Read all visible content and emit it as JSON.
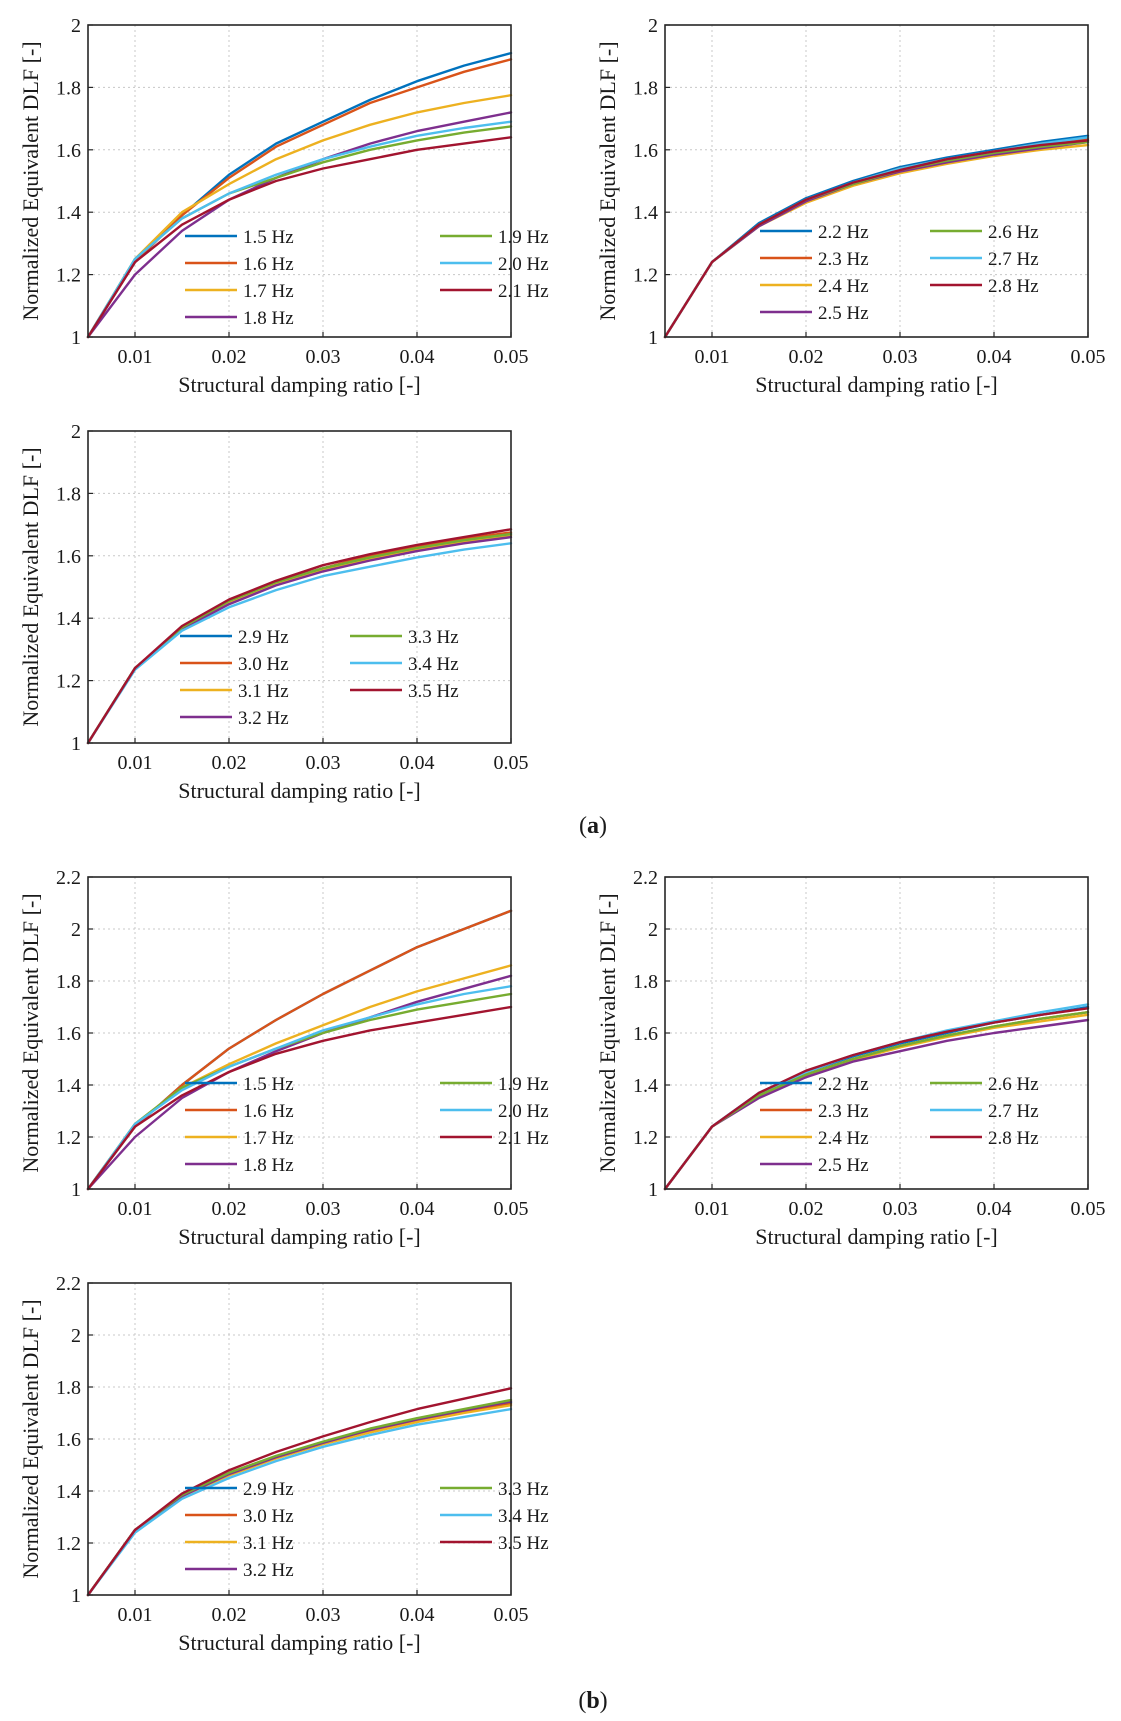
{
  "panel_labels": [
    "a",
    "b"
  ],
  "colors": {
    "blue": "#0072BD",
    "orange": "#D95319",
    "yellow": "#EDB120",
    "purple": "#7E2F8E",
    "green": "#77AC30",
    "cyan": "#4DBEEE",
    "maroon": "#A2142F"
  },
  "chart_data": [
    {
      "type": "line",
      "group": "a",
      "xlabel": "Structural damping ratio [-]",
      "ylabel": "Normalized Equivalent DLF [-]",
      "xlim": [
        0.005,
        0.05
      ],
      "ylim": [
        1,
        2
      ],
      "xticks": [
        0.01,
        0.02,
        0.03,
        0.04,
        0.05
      ],
      "xtick_labels": [
        "0.01",
        "0.02",
        "0.03",
        "0.04",
        "0.05"
      ],
      "yticks": [
        1,
        1.2,
        1.4,
        1.6,
        1.8,
        2
      ],
      "ytick_labels": [
        "1",
        "1.2",
        "1.4",
        "1.6",
        "1.8",
        "2"
      ],
      "x": [
        0.005,
        0.01,
        0.015,
        0.02,
        0.025,
        0.03,
        0.035,
        0.04,
        0.045,
        0.05
      ],
      "series": [
        {
          "name": "1.5 Hz",
          "color": "#0072BD",
          "values": [
            1,
            1.24,
            1.39,
            1.52,
            1.62,
            1.69,
            1.76,
            1.82,
            1.87,
            1.91
          ]
        },
        {
          "name": "1.6 Hz",
          "color": "#D95319",
          "values": [
            1,
            1.24,
            1.39,
            1.51,
            1.61,
            1.68,
            1.75,
            1.8,
            1.85,
            1.89
          ]
        },
        {
          "name": "1.7 Hz",
          "color": "#EDB120",
          "values": [
            1,
            1.25,
            1.4,
            1.49,
            1.57,
            1.63,
            1.68,
            1.72,
            1.75,
            1.775
          ]
        },
        {
          "name": "1.8 Hz",
          "color": "#7E2F8E",
          "values": [
            1,
            1.2,
            1.34,
            1.44,
            1.51,
            1.57,
            1.62,
            1.66,
            1.69,
            1.72
          ]
        },
        {
          "name": "1.9 Hz",
          "color": "#77AC30",
          "values": [
            1,
            1.25,
            1.38,
            1.46,
            1.51,
            1.56,
            1.6,
            1.63,
            1.655,
            1.675
          ]
        },
        {
          "name": "2.0 Hz",
          "color": "#4DBEEE",
          "values": [
            1,
            1.25,
            1.38,
            1.46,
            1.52,
            1.57,
            1.61,
            1.645,
            1.67,
            1.69
          ]
        },
        {
          "name": "2.1 Hz",
          "color": "#A2142F",
          "values": [
            1,
            1.24,
            1.36,
            1.44,
            1.5,
            1.54,
            1.57,
            1.6,
            1.62,
            1.64
          ]
        }
      ]
    },
    {
      "type": "line",
      "group": "a",
      "xlabel": "Structural damping ratio [-]",
      "ylabel": "Normalized Equivalent DLF [-]",
      "xlim": [
        0.005,
        0.05
      ],
      "ylim": [
        1,
        2
      ],
      "xticks": [
        0.01,
        0.02,
        0.03,
        0.04,
        0.05
      ],
      "xtick_labels": [
        "0.01",
        "0.02",
        "0.03",
        "0.04",
        "0.05"
      ],
      "yticks": [
        1,
        1.2,
        1.4,
        1.6,
        1.8,
        2
      ],
      "ytick_labels": [
        "1",
        "1.2",
        "1.4",
        "1.6",
        "1.8",
        "2"
      ],
      "x": [
        0.005,
        0.01,
        0.015,
        0.02,
        0.025,
        0.03,
        0.035,
        0.04,
        0.045,
        0.05
      ],
      "series": [
        {
          "name": "2.2 Hz",
          "color": "#0072BD",
          "values": [
            1,
            1.24,
            1.365,
            1.445,
            1.5,
            1.545,
            1.575,
            1.6,
            1.625,
            1.645
          ]
        },
        {
          "name": "2.3 Hz",
          "color": "#D95319",
          "values": [
            1,
            1.24,
            1.36,
            1.44,
            1.495,
            1.54,
            1.57,
            1.595,
            1.62,
            1.635
          ]
        },
        {
          "name": "2.4 Hz",
          "color": "#EDB120",
          "values": [
            1,
            1.24,
            1.355,
            1.43,
            1.485,
            1.525,
            1.555,
            1.58,
            1.6,
            1.615
          ]
        },
        {
          "name": "2.5 Hz",
          "color": "#7E2F8E",
          "values": [
            1,
            1.24,
            1.355,
            1.435,
            1.49,
            1.53,
            1.56,
            1.585,
            1.605,
            1.625
          ]
        },
        {
          "name": "2.6 Hz",
          "color": "#77AC30",
          "values": [
            1,
            1.24,
            1.36,
            1.44,
            1.49,
            1.535,
            1.565,
            1.59,
            1.61,
            1.625
          ]
        },
        {
          "name": "2.7 Hz",
          "color": "#4DBEEE",
          "values": [
            1,
            1.24,
            1.36,
            1.44,
            1.495,
            1.54,
            1.57,
            1.595,
            1.62,
            1.64
          ]
        },
        {
          "name": "2.8 Hz",
          "color": "#A2142F",
          "values": [
            1,
            1.24,
            1.36,
            1.44,
            1.495,
            1.535,
            1.57,
            1.595,
            1.615,
            1.63
          ]
        }
      ]
    },
    {
      "type": "line",
      "group": "a",
      "xlabel": "Structural damping ratio [-]",
      "ylabel": "Normalized Equivalent DLF [-]",
      "xlim": [
        0.005,
        0.05
      ],
      "ylim": [
        1,
        2
      ],
      "xticks": [
        0.01,
        0.02,
        0.03,
        0.04,
        0.05
      ],
      "xtick_labels": [
        "0.01",
        "0.02",
        "0.03",
        "0.04",
        "0.05"
      ],
      "yticks": [
        1,
        1.2,
        1.4,
        1.6,
        1.8,
        2
      ],
      "ytick_labels": [
        "1",
        "1.2",
        "1.4",
        "1.6",
        "1.8",
        "2"
      ],
      "x": [
        0.005,
        0.01,
        0.015,
        0.02,
        0.025,
        0.03,
        0.035,
        0.04,
        0.045,
        0.05
      ],
      "series": [
        {
          "name": "2.9 Hz",
          "color": "#0072BD",
          "values": [
            1,
            1.24,
            1.37,
            1.455,
            1.515,
            1.56,
            1.595,
            1.625,
            1.65,
            1.67
          ]
        },
        {
          "name": "3.0 Hz",
          "color": "#D95319",
          "values": [
            1,
            1.24,
            1.37,
            1.455,
            1.515,
            1.56,
            1.6,
            1.63,
            1.655,
            1.675
          ]
        },
        {
          "name": "3.1 Hz",
          "color": "#EDB120",
          "values": [
            1,
            1.24,
            1.37,
            1.45,
            1.51,
            1.555,
            1.59,
            1.62,
            1.645,
            1.665
          ]
        },
        {
          "name": "3.2 Hz",
          "color": "#7E2F8E",
          "values": [
            1,
            1.24,
            1.365,
            1.445,
            1.505,
            1.55,
            1.585,
            1.615,
            1.64,
            1.66
          ]
        },
        {
          "name": "3.3 Hz",
          "color": "#77AC30",
          "values": [
            1,
            1.24,
            1.37,
            1.455,
            1.515,
            1.56,
            1.595,
            1.625,
            1.65,
            1.67
          ]
        },
        {
          "name": "3.4 Hz",
          "color": "#4DBEEE",
          "values": [
            1,
            1.235,
            1.36,
            1.435,
            1.49,
            1.535,
            1.565,
            1.595,
            1.62,
            1.64
          ]
        },
        {
          "name": "3.5 Hz",
          "color": "#A2142F",
          "values": [
            1,
            1.24,
            1.375,
            1.46,
            1.52,
            1.57,
            1.605,
            1.635,
            1.66,
            1.685
          ]
        }
      ]
    },
    {
      "type": "line",
      "group": "b",
      "xlabel": "Structural damping ratio [-]",
      "ylabel": "Normalized Equivalent DLF [-]",
      "xlim": [
        0.005,
        0.05
      ],
      "ylim": [
        1,
        2.2
      ],
      "xticks": [
        0.01,
        0.02,
        0.03,
        0.04,
        0.05
      ],
      "xtick_labels": [
        "0.01",
        "0.02",
        "0.03",
        "0.04",
        "0.05"
      ],
      "yticks": [
        1,
        1.2,
        1.4,
        1.6,
        1.8,
        2,
        2.2
      ],
      "ytick_labels": [
        "1",
        "1.2",
        "1.4",
        "1.6",
        "1.8",
        "2",
        "2.2"
      ],
      "x": [
        0.005,
        0.01,
        0.015,
        0.02,
        0.025,
        0.03,
        0.035,
        0.04,
        0.045,
        0.05
      ],
      "series": [
        {
          "name": "1.5 Hz",
          "color": "#0072BD",
          "values": [
            1,
            1.24,
            1.4,
            1.54,
            1.65,
            1.75,
            1.84,
            1.93,
            2.0,
            2.07
          ]
        },
        {
          "name": "1.6 Hz",
          "color": "#D95319",
          "values": [
            1,
            1.24,
            1.4,
            1.54,
            1.65,
            1.75,
            1.84,
            1.93,
            2.0,
            2.07
          ]
        },
        {
          "name": "1.7 Hz",
          "color": "#EDB120",
          "values": [
            1,
            1.25,
            1.39,
            1.48,
            1.56,
            1.63,
            1.7,
            1.76,
            1.81,
            1.86
          ]
        },
        {
          "name": "1.8 Hz",
          "color": "#7E2F8E",
          "values": [
            1,
            1.2,
            1.35,
            1.45,
            1.53,
            1.6,
            1.66,
            1.72,
            1.77,
            1.82
          ]
        },
        {
          "name": "1.9 Hz",
          "color": "#77AC30",
          "values": [
            1,
            1.25,
            1.39,
            1.47,
            1.54,
            1.6,
            1.65,
            1.69,
            1.72,
            1.75
          ]
        },
        {
          "name": "2.0 Hz",
          "color": "#4DBEEE",
          "values": [
            1,
            1.25,
            1.38,
            1.47,
            1.54,
            1.61,
            1.66,
            1.71,
            1.75,
            1.78
          ]
        },
        {
          "name": "2.1 Hz",
          "color": "#A2142F",
          "values": [
            1,
            1.24,
            1.36,
            1.45,
            1.52,
            1.57,
            1.61,
            1.64,
            1.67,
            1.7
          ]
        }
      ]
    },
    {
      "type": "line",
      "group": "b",
      "xlabel": "Structural damping ratio [-]",
      "ylabel": "Normalized Equivalent DLF [-]",
      "xlim": [
        0.005,
        0.05
      ],
      "ylim": [
        1,
        2.2
      ],
      "xticks": [
        0.01,
        0.02,
        0.03,
        0.04,
        0.05
      ],
      "xtick_labels": [
        "0.01",
        "0.02",
        "0.03",
        "0.04",
        "0.05"
      ],
      "yticks": [
        1,
        1.2,
        1.4,
        1.6,
        1.8,
        2,
        2.2
      ],
      "ytick_labels": [
        "1",
        "1.2",
        "1.4",
        "1.6",
        "1.8",
        "2",
        "2.2"
      ],
      "x": [
        0.005,
        0.01,
        0.015,
        0.02,
        0.025,
        0.03,
        0.035,
        0.04,
        0.045,
        0.05
      ],
      "series": [
        {
          "name": "2.2 Hz",
          "color": "#0072BD",
          "values": [
            1,
            1.24,
            1.37,
            1.45,
            1.51,
            1.56,
            1.6,
            1.64,
            1.67,
            1.7
          ]
        },
        {
          "name": "2.3 Hz",
          "color": "#D95319",
          "values": [
            1,
            1.24,
            1.36,
            1.44,
            1.5,
            1.55,
            1.59,
            1.625,
            1.655,
            1.68
          ]
        },
        {
          "name": "2.4 Hz",
          "color": "#EDB120",
          "values": [
            1,
            1.24,
            1.355,
            1.435,
            1.495,
            1.545,
            1.585,
            1.62,
            1.645,
            1.67
          ]
        },
        {
          "name": "2.5 Hz",
          "color": "#7E2F8E",
          "values": [
            1,
            1.24,
            1.35,
            1.43,
            1.49,
            1.53,
            1.57,
            1.6,
            1.625,
            1.65
          ]
        },
        {
          "name": "2.6 Hz",
          "color": "#77AC30",
          "values": [
            1,
            1.24,
            1.36,
            1.44,
            1.5,
            1.55,
            1.59,
            1.625,
            1.655,
            1.68
          ]
        },
        {
          "name": "2.7 Hz",
          "color": "#4DBEEE",
          "values": [
            1,
            1.24,
            1.37,
            1.45,
            1.515,
            1.565,
            1.61,
            1.645,
            1.68,
            1.71
          ]
        },
        {
          "name": "2.8 Hz",
          "color": "#A2142F",
          "values": [
            1,
            1.24,
            1.37,
            1.455,
            1.515,
            1.565,
            1.605,
            1.64,
            1.67,
            1.695
          ]
        }
      ]
    },
    {
      "type": "line",
      "group": "b",
      "xlabel": "Structural damping ratio [-]",
      "ylabel": "Normalized Equivalent DLF [-]",
      "xlim": [
        0.005,
        0.05
      ],
      "ylim": [
        1,
        2.2
      ],
      "xticks": [
        0.01,
        0.02,
        0.03,
        0.04,
        0.05
      ],
      "xtick_labels": [
        "0.01",
        "0.02",
        "0.03",
        "0.04",
        "0.05"
      ],
      "yticks": [
        1,
        1.2,
        1.4,
        1.6,
        1.8,
        2,
        2.2
      ],
      "ytick_labels": [
        "1",
        "1.2",
        "1.4",
        "1.6",
        "1.8",
        "2",
        "2.2"
      ],
      "x": [
        0.005,
        0.01,
        0.015,
        0.02,
        0.025,
        0.03,
        0.035,
        0.04,
        0.045,
        0.05
      ],
      "series": [
        {
          "name": "2.9 Hz",
          "color": "#0072BD",
          "values": [
            1,
            1.25,
            1.38,
            1.465,
            1.53,
            1.585,
            1.635,
            1.675,
            1.71,
            1.74
          ]
        },
        {
          "name": "3.0 Hz",
          "color": "#D95319",
          "values": [
            1,
            1.25,
            1.38,
            1.465,
            1.53,
            1.585,
            1.63,
            1.67,
            1.705,
            1.735
          ]
        },
        {
          "name": "3.1 Hz",
          "color": "#EDB120",
          "values": [
            1,
            1.25,
            1.38,
            1.46,
            1.525,
            1.58,
            1.625,
            1.665,
            1.7,
            1.73
          ]
        },
        {
          "name": "3.2 Hz",
          "color": "#7E2F8E",
          "values": [
            1,
            1.25,
            1.38,
            1.465,
            1.53,
            1.585,
            1.635,
            1.675,
            1.71,
            1.745
          ]
        },
        {
          "name": "3.3 Hz",
          "color": "#77AC30",
          "values": [
            1,
            1.25,
            1.385,
            1.47,
            1.535,
            1.59,
            1.64,
            1.68,
            1.715,
            1.75
          ]
        },
        {
          "name": "3.4 Hz",
          "color": "#4DBEEE",
          "values": [
            1,
            1.24,
            1.37,
            1.45,
            1.515,
            1.57,
            1.615,
            1.655,
            1.685,
            1.715
          ]
        },
        {
          "name": "3.5 Hz",
          "color": "#A2142F",
          "values": [
            1,
            1.25,
            1.39,
            1.48,
            1.55,
            1.61,
            1.665,
            1.715,
            1.755,
            1.795
          ]
        }
      ]
    }
  ]
}
